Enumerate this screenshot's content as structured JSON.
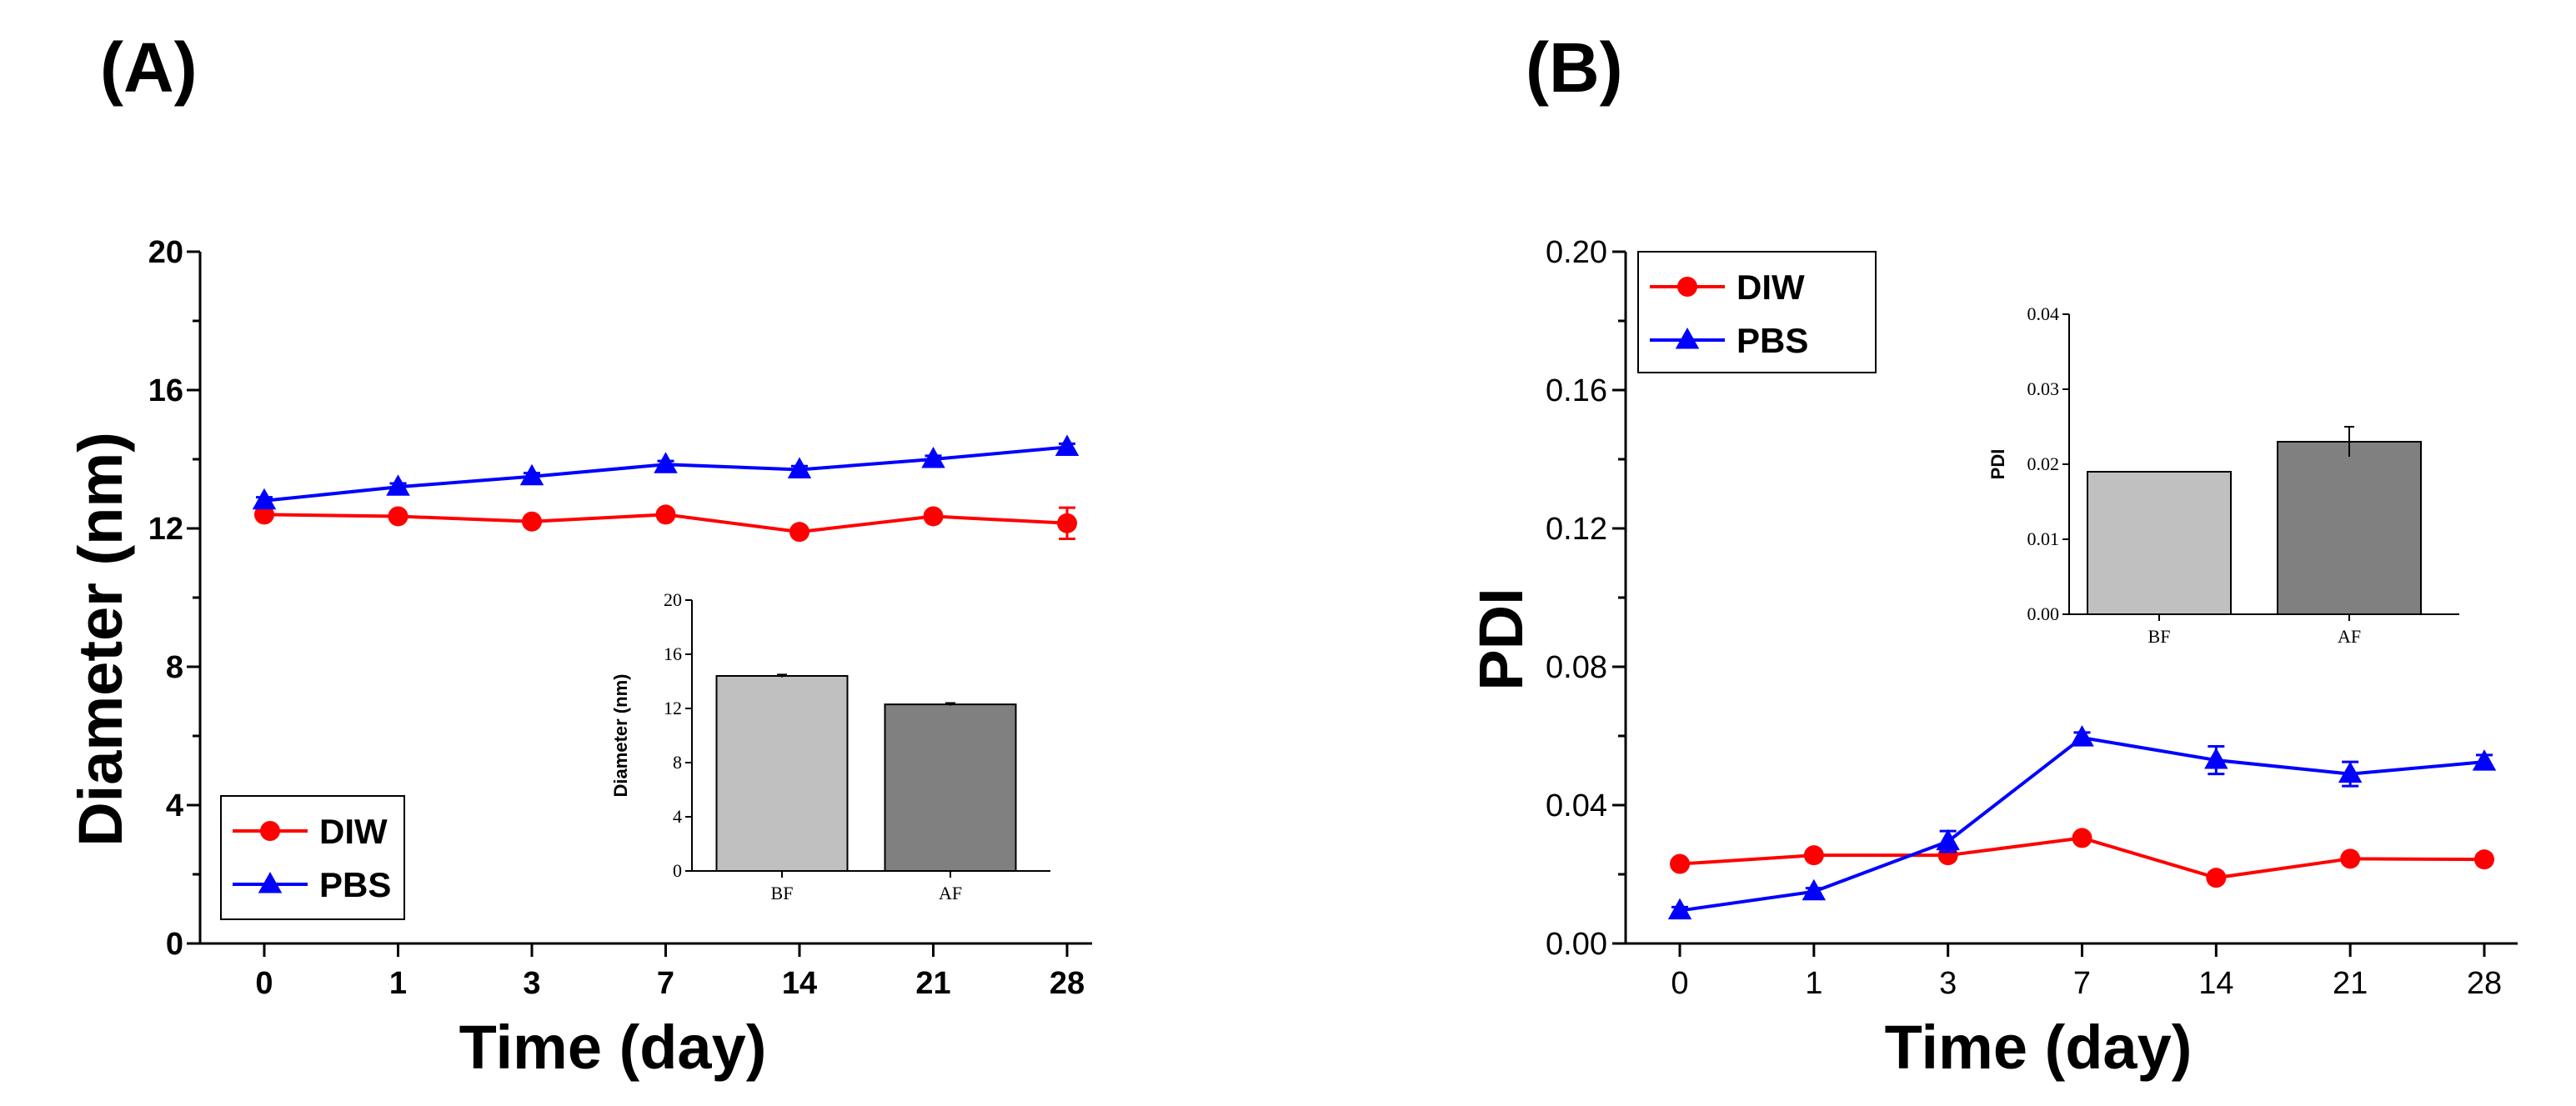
{
  "panels": {
    "a": {
      "label": "(A)"
    },
    "b": {
      "label": "(B)"
    }
  },
  "chart_data": [
    {
      "id": "A",
      "type": "line",
      "title": "",
      "xlabel": "Time (day)",
      "ylabel": "Diameter (nm)",
      "categories": [
        "0",
        "1",
        "3",
        "7",
        "14",
        "21",
        "28"
      ],
      "ylim": [
        0,
        20
      ],
      "yticks": [
        "0",
        "4",
        "8",
        "12",
        "16",
        "20"
      ],
      "legend_position": "bottom-left",
      "series": [
        {
          "name": "DIW",
          "color": "#ff0000",
          "marker": "circle",
          "values": [
            12.4,
            12.35,
            12.2,
            12.4,
            11.9,
            12.35,
            12.15
          ],
          "errors": [
            0.1,
            0.1,
            0.1,
            0.1,
            0.1,
            0.1,
            0.45
          ]
        },
        {
          "name": "PBS",
          "color": "#0000ff",
          "marker": "triangle",
          "values": [
            12.8,
            13.2,
            13.5,
            13.85,
            13.7,
            14.0,
            14.35
          ],
          "errors": [
            0.1,
            0.1,
            0.1,
            0.1,
            0.1,
            0.1,
            0.1
          ]
        }
      ],
      "inset": {
        "type": "bar",
        "ylabel": "Diameter (nm)",
        "categories": [
          "BF",
          "AF"
        ],
        "values": [
          14.4,
          12.3
        ],
        "errors": [
          0.1,
          0.1
        ],
        "colors": [
          "#c0c0c0",
          "#808080"
        ],
        "ylim": [
          0,
          20
        ],
        "yticks": [
          "0",
          "4",
          "8",
          "12",
          "16",
          "20"
        ]
      }
    },
    {
      "id": "B",
      "type": "line",
      "title": "",
      "xlabel": "Time (day)",
      "ylabel": "PDI",
      "categories": [
        "0",
        "1",
        "3",
        "7",
        "14",
        "21",
        "28"
      ],
      "ylim": [
        0,
        0.2
      ],
      "yticks": [
        "0.00",
        "0.04",
        "0.08",
        "0.12",
        "0.16",
        "0.20"
      ],
      "legend_position": "top-left",
      "series": [
        {
          "name": "DIW",
          "color": "#ff0000",
          "marker": "circle",
          "values": [
            0.023,
            0.0255,
            0.0255,
            0.0305,
            0.019,
            0.0245,
            0.0243
          ],
          "errors": [
            0.0008,
            0.0008,
            0.0008,
            0.0008,
            0.0008,
            0.0008,
            0.0008
          ]
        },
        {
          "name": "PBS",
          "color": "#0000ff",
          "marker": "triangle",
          "values": [
            0.0095,
            0.015,
            0.0295,
            0.0595,
            0.053,
            0.049,
            0.0525
          ],
          "errors": [
            0.001,
            0.001,
            0.003,
            0.0015,
            0.004,
            0.0035,
            0.002
          ]
        }
      ],
      "inset": {
        "type": "bar",
        "ylabel": "PDI",
        "categories": [
          "BF",
          "AF"
        ],
        "values": [
          0.019,
          0.023
        ],
        "errors": [
          0.0,
          0.002
        ],
        "colors": [
          "#c0c0c0",
          "#808080"
        ],
        "ylim": [
          0,
          0.04
        ],
        "yticks": [
          "0.00",
          "0.01",
          "0.02",
          "0.03",
          "0.04"
        ]
      }
    }
  ]
}
